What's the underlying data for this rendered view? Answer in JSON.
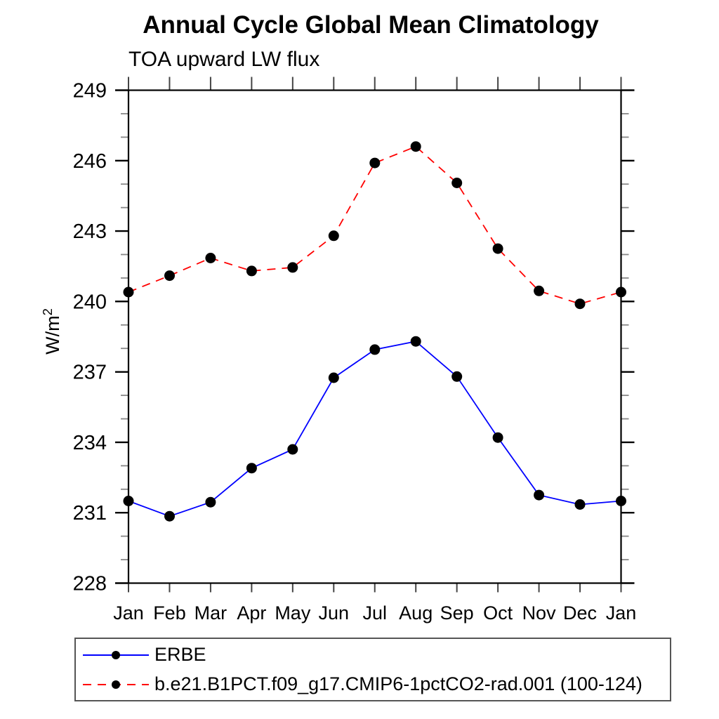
{
  "page": {
    "background": "#ffffff"
  },
  "labels": {
    "ylabel_base": "W/m",
    "ylabel_exp": "2"
  },
  "axis_style": {
    "frame_color": "#000000",
    "major_tick_color": "#000000",
    "minor_tick_color": "#888888",
    "month_tick_color": "#444444",
    "text_color": "#000000"
  },
  "chart_data": {
    "type": "line",
    "title": "Annual Cycle Global Mean Climatology",
    "subtitle": "TOA upward LW flux",
    "xlabel": "",
    "ylabel": "W/m2",
    "categories": [
      "Jan",
      "Feb",
      "Mar",
      "Apr",
      "May",
      "Jun",
      "Jul",
      "Aug",
      "Sep",
      "Oct",
      "Nov",
      "Dec",
      "Jan"
    ],
    "ylim": [
      228,
      249
    ],
    "yticks": [
      228,
      231,
      234,
      237,
      240,
      243,
      246,
      249
    ],
    "ytick_minor_step": 1,
    "grid": false,
    "legend_position": "bottom-left",
    "series": [
      {
        "name": "ERBE",
        "color": "#0000ff",
        "line_style": "solid",
        "marker": "filled-circle",
        "marker_color": "#000000",
        "values": [
          231.5,
          230.85,
          231.45,
          232.9,
          233.7,
          236.75,
          237.95,
          238.3,
          236.8,
          234.2,
          231.75,
          231.35,
          231.5
        ]
      },
      {
        "name": "b.e21.B1PCT.f09_g17.CMIP6-1pctCO2-rad.001 (100-124)",
        "color": "#ff0000",
        "line_style": "dashed",
        "marker": "filled-circle",
        "marker_color": "#000000",
        "values": [
          240.4,
          241.1,
          241.85,
          241.3,
          241.45,
          242.8,
          245.9,
          246.6,
          245.05,
          242.25,
          240.45,
          239.9,
          240.4
        ]
      }
    ]
  }
}
